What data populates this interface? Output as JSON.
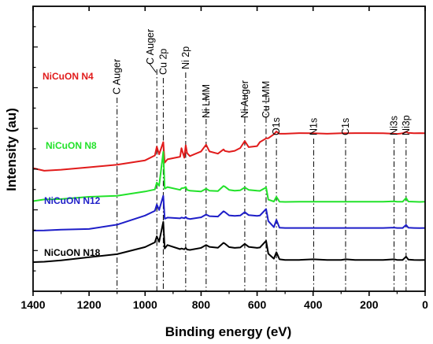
{
  "chart_data": {
    "type": "line",
    "title": "",
    "xlabel": "Binding energy (eV)",
    "ylabel": "Intensity (au)",
    "xlim": [
      1400,
      0
    ],
    "x_reversed": true,
    "x_ticks": [
      1400,
      1200,
      1000,
      800,
      600,
      400,
      200,
      0
    ],
    "y_ticks_shown": false,
    "grid": false,
    "legend": "none (series labels placed on the left beside each curve)",
    "peak_markers": [
      {
        "label": "C Auger",
        "x": 1100
      },
      {
        "label": "C Auger",
        "x": 958
      },
      {
        "label": "Cu 2p",
        "x": 935
      },
      {
        "label": "Ni 2p",
        "x": 855
      },
      {
        "label": "Ni LMM",
        "x": 782
      },
      {
        "label": "Ni Auger",
        "x": 644
      },
      {
        "label": "Cu LMM",
        "x": 568
      },
      {
        "label": "O1s",
        "x": 531
      },
      {
        "label": "N1s",
        "x": 398
      },
      {
        "label": "C1s",
        "x": 284
      },
      {
        "label": "Ni3s",
        "x": 111
      },
      {
        "label": "Ni3p",
        "x": 68
      }
    ],
    "series": [
      {
        "name": "NiCuON N4",
        "color": "#e11b1b",
        "x": [
          1400,
          1360,
          1300,
          1200,
          1100,
          1000,
          965,
          958,
          950,
          935,
          930,
          920,
          875,
          870,
          860,
          855,
          850,
          840,
          800,
          782,
          770,
          740,
          720,
          715,
          700,
          680,
          660,
          644,
          630,
          600,
          590,
          568,
          560,
          540,
          531,
          520,
          500,
          450,
          400,
          350,
          300,
          284,
          250,
          200,
          150,
          111,
          100,
          80,
          68,
          60,
          40,
          20,
          0
        ],
        "y": [
          40.5,
          39.2,
          39.7,
          40.9,
          42.2,
          44.3,
          46.7,
          51.0,
          47.3,
          53.3,
          43.2,
          44.8,
          46.1,
          50.3,
          45.6,
          51.7,
          47.9,
          46.4,
          48.7,
          52.0,
          48.7,
          47.6,
          49.7,
          48.9,
          48.5,
          49.0,
          50.4,
          53.8,
          50.8,
          51.3,
          53.3,
          55.1,
          55.2,
          57.1,
          58.5,
          57.4,
          57.4,
          57.7,
          57.6,
          57.4,
          57.6,
          57.6,
          57.7,
          57.7,
          57.6,
          57.4,
          57.3,
          57.6,
          58.3,
          57.8,
          57.6,
          57.7,
          57.6
        ]
      },
      {
        "name": "NiCuON N8",
        "color": "#22e22a",
        "x": [
          1400,
          1360,
          1300,
          1200,
          1100,
          1000,
          965,
          958,
          950,
          935,
          930,
          920,
          875,
          870,
          860,
          855,
          850,
          840,
          800,
          782,
          770,
          740,
          720,
          715,
          700,
          680,
          660,
          644,
          630,
          600,
          590,
          568,
          560,
          540,
          531,
          520,
          500,
          450,
          400,
          350,
          300,
          284,
          250,
          200,
          150,
          111,
          100,
          80,
          68,
          60,
          40,
          20,
          0
        ],
        "y": [
          24.3,
          25.1,
          25.3,
          26.4,
          26.9,
          29.0,
          30.0,
          33.4,
          31.8,
          48.5,
          30.4,
          31.2,
          29.8,
          30.6,
          30.8,
          31.3,
          29.8,
          29.4,
          29.0,
          30.4,
          29.4,
          29.2,
          31.7,
          31.4,
          29.8,
          29.4,
          29.6,
          31.0,
          29.8,
          29.4,
          29.3,
          31.0,
          25.0,
          24.1,
          26.4,
          24.0,
          23.9,
          24.0,
          24.0,
          24.0,
          24.0,
          24.0,
          24.0,
          24.0,
          24.0,
          24.2,
          24.0,
          24.0,
          25.8,
          24.1,
          24.0,
          23.9,
          24.0
        ]
      },
      {
        "name": "NiCuON N12",
        "color": "#1e1ec8",
        "x": [
          1400,
          1360,
          1300,
          1200,
          1100,
          1000,
          965,
          958,
          950,
          935,
          930,
          920,
          875,
          870,
          860,
          855,
          850,
          840,
          800,
          782,
          770,
          740,
          720,
          715,
          700,
          680,
          660,
          644,
          630,
          600,
          590,
          568,
          560,
          540,
          531,
          520,
          500,
          450,
          400,
          350,
          300,
          284,
          250,
          200,
          150,
          111,
          100,
          80,
          68,
          60,
          40,
          20,
          0
        ],
        "y": [
          9.8,
          9.9,
          10.3,
          10.6,
          12.7,
          17.2,
          19.5,
          22.6,
          19.9,
          26.9,
          15.6,
          16.2,
          15.8,
          16.2,
          15.9,
          16.5,
          15.8,
          15.5,
          16.3,
          17.7,
          16.9,
          16.7,
          19.3,
          18.9,
          17.3,
          17.0,
          17.2,
          18.9,
          17.4,
          17.0,
          17.2,
          20.4,
          14.5,
          11.5,
          15.1,
          11.2,
          11.1,
          11.1,
          11.1,
          11.1,
          11.1,
          11.1,
          11.1,
          11.1,
          11.1,
          11.3,
          11.1,
          11.1,
          12.6,
          11.2,
          11.1,
          11.0,
          11.1
        ]
      },
      {
        "name": "NiCuON N18",
        "color": "#000000",
        "x": [
          1400,
          1360,
          1300,
          1200,
          1100,
          1000,
          965,
          958,
          950,
          935,
          930,
          920,
          875,
          870,
          860,
          855,
          850,
          840,
          800,
          782,
          770,
          740,
          720,
          715,
          700,
          680,
          660,
          644,
          630,
          600,
          590,
          568,
          560,
          540,
          531,
          520,
          500,
          450,
          400,
          350,
          300,
          284,
          250,
          200,
          150,
          111,
          100,
          80,
          68,
          60,
          40,
          20,
          0
        ],
        "y": [
          -5.7,
          -5.5,
          -4.8,
          -3.3,
          -1.8,
          1.7,
          4.0,
          7.0,
          4.3,
          14.1,
          1.0,
          2.7,
          0.7,
          1.0,
          0.6,
          1.3,
          0.5,
          0.3,
          1.3,
          2.7,
          1.8,
          1.4,
          3.8,
          3.4,
          1.7,
          1.3,
          1.5,
          3.3,
          1.8,
          1.3,
          1.5,
          4.8,
          -1.5,
          -4.0,
          -0.8,
          -4.3,
          -4.6,
          -4.6,
          -4.3,
          -4.6,
          -4.6,
          -4.3,
          -4.6,
          -4.6,
          -4.6,
          -4.3,
          -4.6,
          -4.6,
          -3.0,
          -4.4,
          -4.6,
          -4.7,
          -4.6
        ]
      }
    ]
  }
}
